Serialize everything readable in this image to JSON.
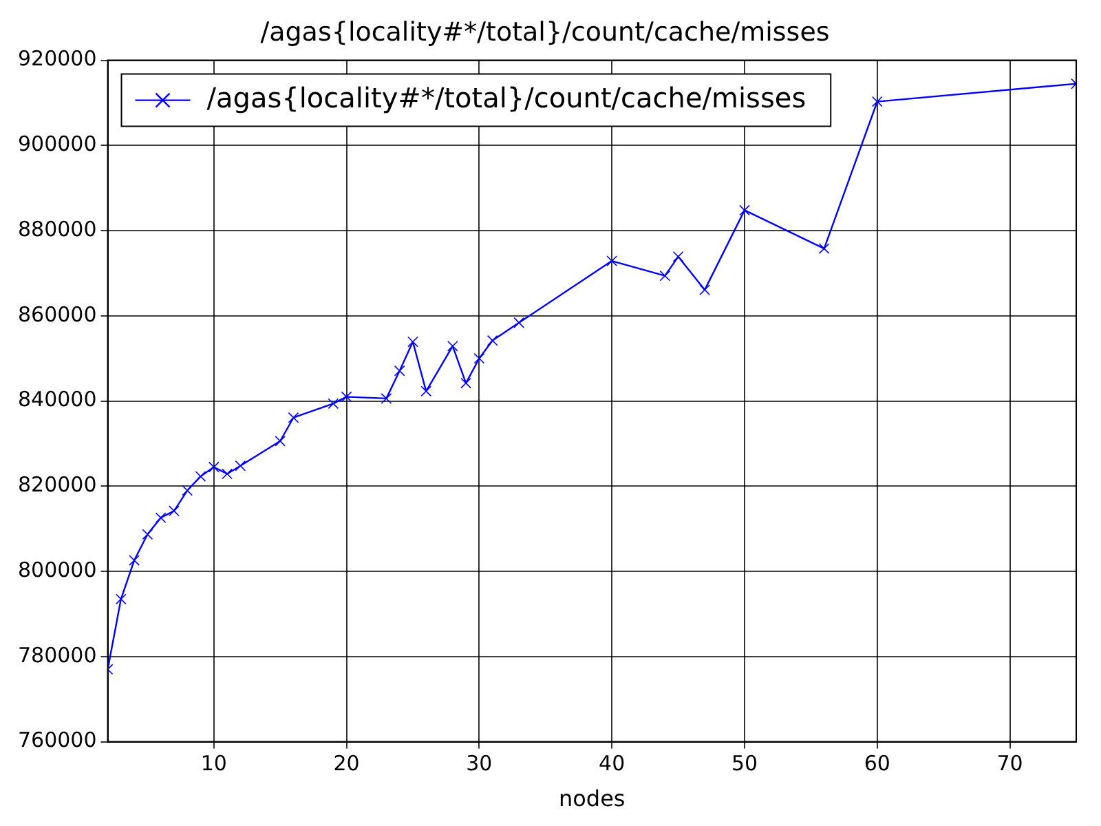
{
  "chart_data": {
    "type": "line",
    "title": "/agas{locality#*/total}/count/cache/misses",
    "xlabel": "nodes",
    "x": [
      2,
      3,
      4,
      5,
      6,
      7,
      8,
      9,
      10,
      11,
      12,
      15,
      16,
      19,
      20,
      23,
      24,
      25,
      26,
      28,
      29,
      30,
      31,
      33,
      40,
      44,
      45,
      47,
      50,
      56,
      60,
      75
    ],
    "series": [
      {
        "name": "/agas{locality#*/total}/count/cache/misses",
        "color": "#0000ff",
        "values": [
          777000,
          793500,
          802600,
          808700,
          812600,
          814200,
          819000,
          822300,
          824500,
          822900,
          824800,
          830600,
          836100,
          839400,
          841000,
          840600,
          847100,
          853900,
          842300,
          852900,
          844200,
          850000,
          854200,
          858400,
          872900,
          869400,
          873900,
          866100,
          884800,
          875800,
          910300,
          914500
        ]
      }
    ],
    "xlim": [
      2,
      75
    ],
    "xticks": [
      10,
      20,
      30,
      40,
      50,
      60,
      70
    ],
    "ylim": [
      760000,
      920000
    ],
    "yticks": [
      760000,
      780000,
      800000,
      820000,
      840000,
      860000,
      880000,
      900000,
      920000
    ],
    "grid": true,
    "legend": "top left",
    "marker": "cross",
    "line_style": "solid"
  }
}
